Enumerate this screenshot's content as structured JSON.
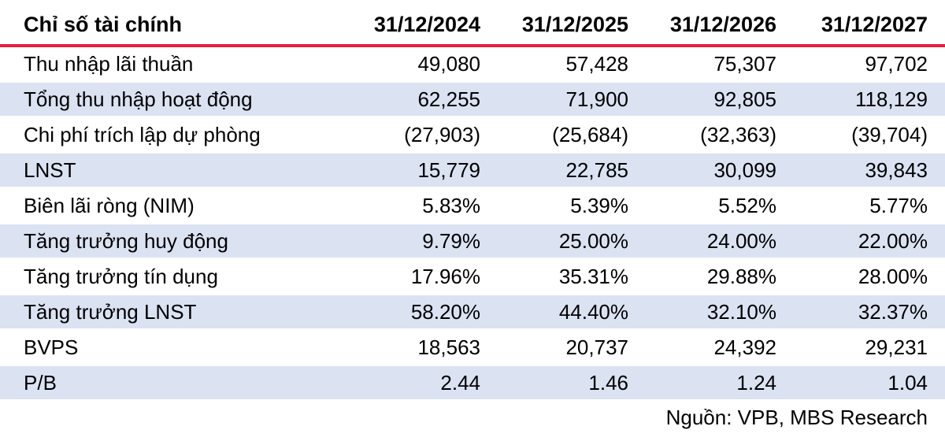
{
  "colors": {
    "accent_red": "#e61e3d",
    "stripe_blue": "#dbe2f2",
    "text": "#000000",
    "background": "#ffffff"
  },
  "table": {
    "header": {
      "label": "Chỉ số tài chính",
      "columns": [
        "31/12/2024",
        "31/12/2025",
        "31/12/2026",
        "31/12/2027"
      ]
    },
    "rows": [
      {
        "label": "Thu nhập lãi thuần",
        "values": [
          "49,080",
          "57,428",
          "75,307",
          "97,702"
        ]
      },
      {
        "label": "Tổng thu nhập hoạt động",
        "values": [
          "62,255",
          "71,900",
          "92,805",
          "118,129"
        ]
      },
      {
        "label": "Chi phí trích lập dự phòng",
        "values": [
          "(27,903)",
          "(25,684)",
          "(32,363)",
          "(39,704)"
        ]
      },
      {
        "label": "LNST",
        "values": [
          "15,779",
          "22,785",
          "30,099",
          "39,843"
        ]
      },
      {
        "label": "Biên lãi ròng (NIM)",
        "values": [
          "5.83%",
          "5.39%",
          "5.52%",
          "5.77%"
        ]
      },
      {
        "label": "Tăng trưởng huy động",
        "values": [
          "9.79%",
          "25.00%",
          "24.00%",
          "22.00%"
        ]
      },
      {
        "label": "Tăng trưởng tín dụng",
        "values": [
          "17.96%",
          "35.31%",
          "29.88%",
          "28.00%"
        ]
      },
      {
        "label": "Tăng trưởng LNST",
        "values": [
          "58.20%",
          "44.40%",
          "32.10%",
          "32.37%"
        ]
      },
      {
        "label": "BVPS",
        "values": [
          "18,563",
          "20,737",
          "24,392",
          "29,231"
        ]
      },
      {
        "label": "P/B",
        "values": [
          "2.44",
          "1.46",
          "1.24",
          "1.04"
        ]
      }
    ]
  },
  "footer": {
    "source": "Nguồn: VPB, MBS Research"
  },
  "chart_data": {
    "type": "table",
    "title": "Chỉ số tài chính",
    "columns": [
      "Chỉ số tài chính",
      "31/12/2024",
      "31/12/2025",
      "31/12/2026",
      "31/12/2027"
    ],
    "rows": [
      [
        "Thu nhập lãi thuần",
        49080,
        57428,
        75307,
        97702
      ],
      [
        "Tổng thu nhập hoạt động",
        62255,
        71900,
        92805,
        118129
      ],
      [
        "Chi phí trích lập dự phòng",
        -27903,
        -25684,
        -32363,
        -39704
      ],
      [
        "LNST",
        15779,
        22785,
        30099,
        39843
      ],
      [
        "Biên lãi ròng (NIM) %",
        5.83,
        5.39,
        5.52,
        5.77
      ],
      [
        "Tăng trưởng huy động %",
        9.79,
        25.0,
        24.0,
        22.0
      ],
      [
        "Tăng trưởng tín dụng %",
        17.96,
        35.31,
        29.88,
        28.0
      ],
      [
        "Tăng trưởng LNST %",
        58.2,
        44.4,
        32.1,
        32.37
      ],
      [
        "BVPS",
        18563,
        20737,
        24392,
        29231
      ],
      [
        "P/B",
        2.44,
        1.46,
        1.24,
        1.04
      ]
    ],
    "source": "Nguồn: VPB, MBS Research",
    "layout_hints": {
      "stripes": "alternate rows light blue starting at row 2",
      "header_rule": "thick red line under header",
      "numeric_alignment": "right"
    }
  }
}
